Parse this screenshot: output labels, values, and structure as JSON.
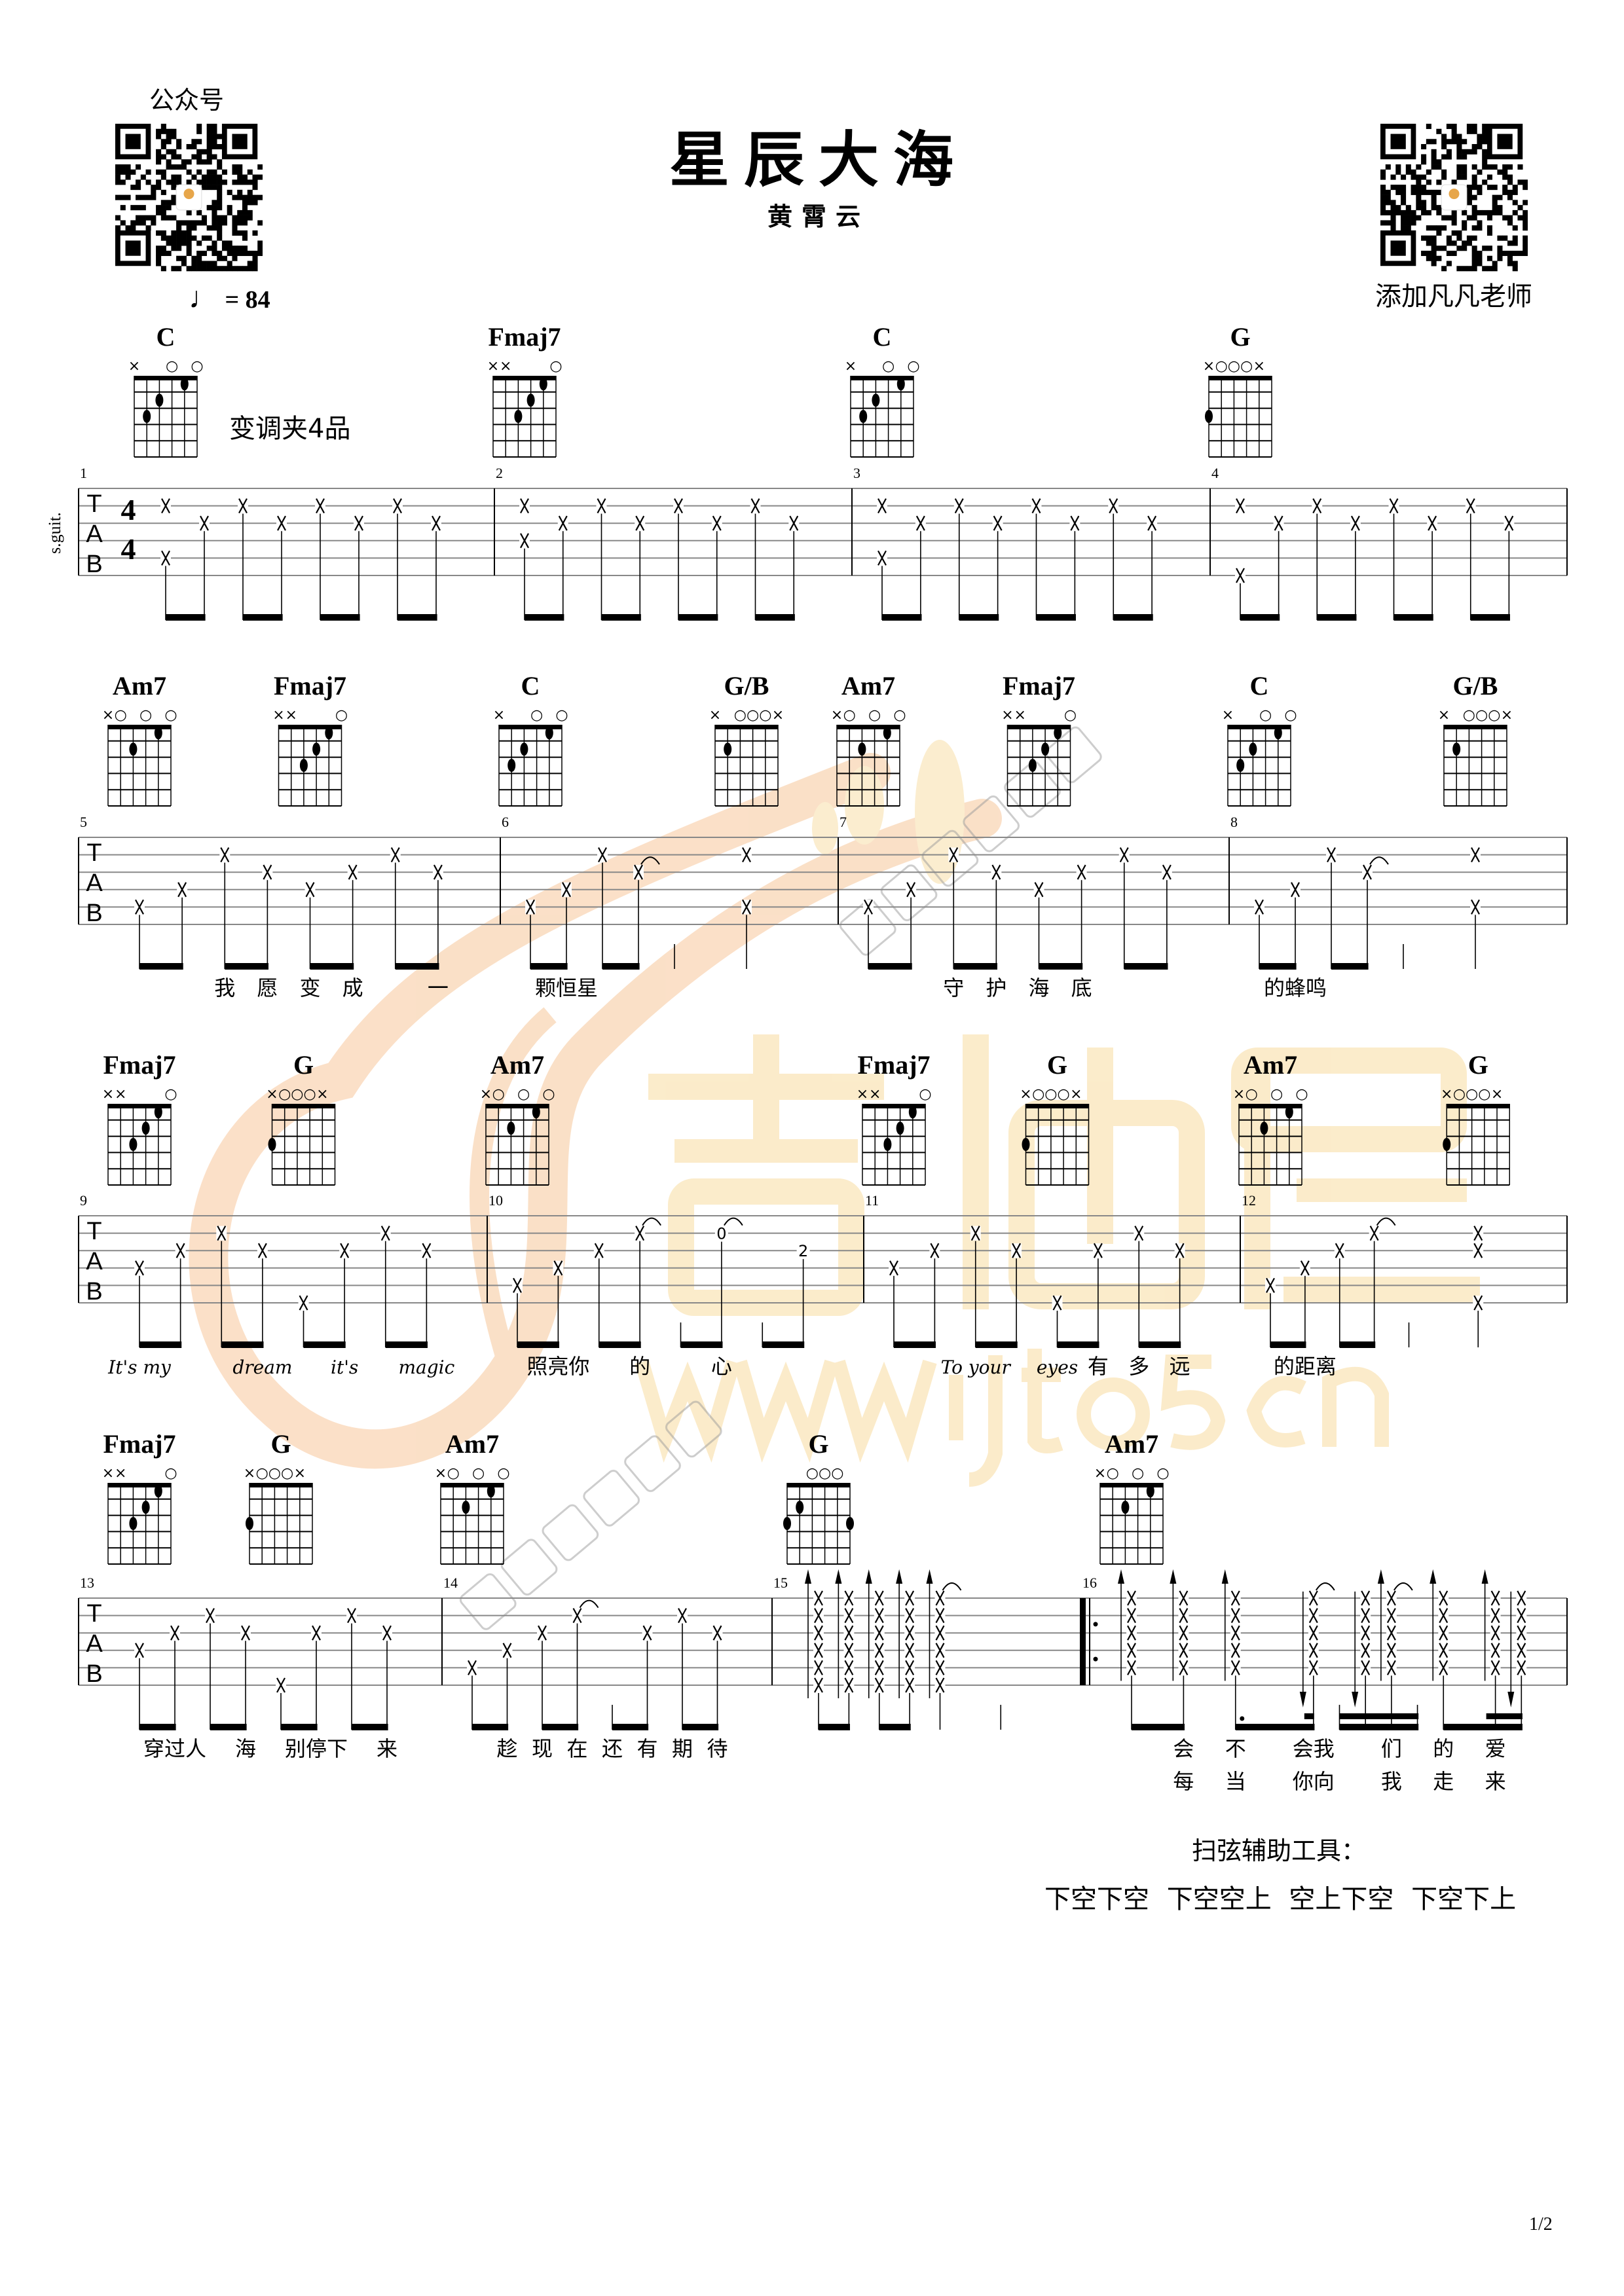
{
  "header": {
    "wechat_label": "公众号",
    "title": "星辰大海",
    "artist": "黄霄云",
    "add_teacher_label": "添加凡凡老师",
    "tempo_icon": "quarter-note-icon",
    "tempo": "= 84",
    "capo": "变调夹4品"
  },
  "instrument_label": "s.guit.",
  "clef": [
    "T",
    "A",
    "B"
  ],
  "time_signature": [
    "4",
    "4"
  ],
  "chord_shapes": {
    "C": {
      "markers": [
        "x",
        "",
        "",
        "o",
        "",
        "o"
      ],
      "dots": [
        [
          5,
          3
        ],
        [
          4,
          2
        ],
        [
          2,
          1
        ]
      ]
    },
    "Fmaj7": {
      "markers": [
        "x",
        "x",
        "",
        "",
        "",
        "o"
      ],
      "dots": [
        [
          4,
          3
        ],
        [
          3,
          2
        ],
        [
          2,
          1
        ]
      ]
    },
    "G": {
      "markers": [
        "x",
        "o",
        "o",
        "o",
        "x",
        ""
      ],
      "dots": [
        [
          6,
          3
        ]
      ]
    },
    "G3": {
      "markers": [
        "",
        "",
        "o",
        "o",
        "o",
        ""
      ],
      "dots": [
        [
          6,
          3
        ],
        [
          5,
          2
        ],
        [
          1,
          3
        ]
      ]
    },
    "Am7": {
      "markers": [
        "x",
        "o",
        "",
        "o",
        "",
        "o"
      ],
      "dots": [
        [
          4,
          2
        ],
        [
          2,
          1
        ]
      ]
    },
    "G/B": {
      "markers": [
        "x",
        "",
        "o",
        "o",
        "o",
        "x"
      ],
      "dots": [
        [
          5,
          2
        ]
      ]
    }
  },
  "systems": [
    {
      "measures": [
        {
          "num": "1",
          "events": [
            "25",
            "3",
            "2",
            "3",
            "2",
            "3",
            "2",
            "3"
          ],
          "chords": [
            {
              "i": 0,
              "name": "C"
            }
          ],
          "lyrics": []
        },
        {
          "num": "2",
          "events": [
            "24",
            "3",
            "2",
            "3",
            "2",
            "3",
            "2",
            "3"
          ],
          "chords": [
            {
              "i": 0,
              "name": "Fmaj7"
            }
          ],
          "lyrics": []
        },
        {
          "num": "3",
          "events": [
            "25",
            "3",
            "2",
            "3",
            "2",
            "3",
            "2",
            "3"
          ],
          "chords": [
            {
              "i": 0,
              "name": "C"
            }
          ],
          "lyrics": []
        },
        {
          "num": "4",
          "events": [
            "26",
            "3",
            "2",
            "3",
            "2",
            "3",
            "2",
            "3"
          ],
          "chords": [
            {
              "i": 0,
              "name": "G"
            }
          ],
          "lyrics": []
        }
      ]
    },
    {
      "measures": [
        {
          "num": "5",
          "events": [
            "5",
            "4",
            "2",
            "3",
            "4",
            "3",
            "2",
            "3"
          ],
          "chords": [
            {
              "i": 0,
              "name": "Am7"
            },
            {
              "i": 4,
              "name": "Fmaj7"
            }
          ],
          "lyrics": [
            {
              "i": 2,
              "t": "我"
            },
            {
              "i": 3,
              "t": "愿"
            },
            {
              "i": 4,
              "t": "变"
            },
            {
              "i": 5,
              "t": "成"
            },
            {
              "i": 7,
              "t": "一"
            }
          ]
        },
        {
          "num": "6",
          "events": [
            "5",
            "4",
            "2",
            "3~",
            "q-",
            "q25"
          ],
          "chords": [
            {
              "i": 0,
              "name": "C"
            },
            {
              "i": 5,
              "name": "G/B"
            }
          ],
          "lyrics": [
            {
              "i": 1,
              "t": "颗恒星"
            }
          ]
        },
        {
          "num": "7",
          "events": [
            "5",
            "4",
            "2",
            "3",
            "4",
            "3",
            "2",
            "3"
          ],
          "chords": [
            {
              "i": 0,
              "name": "Am7"
            },
            {
              "i": 4,
              "name": "Fmaj7"
            }
          ],
          "lyrics": [
            {
              "i": 2,
              "t": "守"
            },
            {
              "i": 3,
              "t": "护"
            },
            {
              "i": 4,
              "t": "海"
            },
            {
              "i": 5,
              "t": "底"
            }
          ]
        },
        {
          "num": "8",
          "events": [
            "5",
            "4",
            "2",
            "3~",
            "q-",
            "q25"
          ],
          "chords": [
            {
              "i": 0,
              "name": "C"
            },
            {
              "i": 5,
              "name": "G/B"
            }
          ],
          "lyrics": [
            {
              "i": 1,
              "t": "的蜂鸣"
            }
          ]
        }
      ]
    },
    {
      "measures": [
        {
          "num": "9",
          "events": [
            "4",
            "3",
            "2",
            "3",
            "6",
            "3",
            "2",
            "3"
          ],
          "chords": [
            {
              "i": 0,
              "name": "Fmaj7"
            },
            {
              "i": 4,
              "name": "G"
            }
          ],
          "lyrics": [
            {
              "i": 0,
              "t": "It's my"
            },
            {
              "i": 3,
              "t": "dream"
            },
            {
              "i": 5,
              "t": "it's"
            },
            {
              "i": 7,
              "t": "magic"
            }
          ]
        },
        {
          "num": "10",
          "events": [
            "5",
            "4",
            "3",
            "2~",
            "-",
            "2=0~",
            "-",
            "3=2"
          ],
          "chords": [
            {
              "i": 0,
              "name": "Am7"
            }
          ],
          "lyrics": [
            {
              "i": 1,
              "t": "照亮你"
            },
            {
              "i": 3,
              "t": "的"
            },
            {
              "i": 5,
              "t": "心"
            }
          ]
        },
        {
          "num": "11",
          "events": [
            "4",
            "3",
            "2",
            "3",
            "6",
            "3",
            "2",
            "3"
          ],
          "chords": [
            {
              "i": 0,
              "name": "Fmaj7"
            },
            {
              "i": 4,
              "name": "G"
            }
          ],
          "lyrics": [
            {
              "i": 2,
              "t": "To your"
            },
            {
              "i": 4,
              "t": "eyes"
            },
            {
              "i": 5,
              "t": "有"
            },
            {
              "i": 6,
              "t": "多"
            },
            {
              "i": 7,
              "t": "远"
            }
          ]
        },
        {
          "num": "12",
          "events": [
            "5",
            "4",
            "3",
            "2~",
            "q-",
            "q236"
          ],
          "chords": [
            {
              "i": 0,
              "name": "Am7"
            },
            {
              "i": 5,
              "name": "G"
            }
          ],
          "lyrics": [
            {
              "i": 1,
              "t": "的距离"
            }
          ]
        }
      ]
    },
    {
      "measures": [
        {
          "num": "13",
          "events": [
            "4",
            "3",
            "2",
            "3",
            "6",
            "3",
            "2",
            "3"
          ],
          "chords": [
            {
              "i": 0,
              "name": "Fmaj7"
            },
            {
              "i": 4,
              "name": "G"
            }
          ],
          "lyrics": [
            {
              "i": 1,
              "t": "穿过人"
            },
            {
              "i": 3,
              "t": "海"
            },
            {
              "i": 5,
              "t": "别停下"
            },
            {
              "i": 7,
              "t": "来"
            }
          ]
        },
        {
          "num": "14",
          "events": [
            "5",
            "4",
            "3",
            "2~",
            "-",
            "3",
            "2",
            "3"
          ],
          "chords": [
            {
              "i": 0,
              "name": "Am7"
            }
          ],
          "lyrics": [
            {
              "i": 1,
              "t": "趁"
            },
            {
              "i": 2,
              "t": "现"
            },
            {
              "i": 3,
              "t": "在"
            },
            {
              "i": 4,
              "t": "还"
            },
            {
              "i": 5,
              "t": "有"
            },
            {
              "i": 6,
              "t": "期"
            },
            {
              "i": 7,
              "t": "待"
            }
          ]
        },
        {
          "num": "15",
          "events": [
            "123456u",
            "123456u",
            "123456u",
            "123456u",
            "q123456u~",
            "q-"
          ],
          "chords": [
            {
              "i": 0,
              "name": "G",
              "shape": "G3"
            }
          ],
          "lyrics": []
        },
        {
          "num": "16",
          "repeat_start": true,
          "events": [
            "12345u",
            "12345u",
            "t12345u",
            "s12345d~",
            "s-",
            "s12345d",
            "s12345u~",
            "s-",
            "12345u",
            "s12345u",
            "s12345d"
          ],
          "chords": [
            {
              "i": 0,
              "name": "Am7"
            }
          ],
          "lyrics": [
            {
              "i": 1,
              "t": "会"
            },
            {
              "i": 2,
              "t": "不"
            },
            {
              "i": 3,
              "t": "会我"
            },
            {
              "i": 6,
              "t": "们"
            },
            {
              "i": 8,
              "t": "的"
            },
            {
              "i": 9,
              "t": "爱"
            }
          ],
          "lyrics2": [
            {
              "i": 1,
              "t": "每"
            },
            {
              "i": 2,
              "t": "当"
            },
            {
              "i": 3,
              "t": "你向"
            },
            {
              "i": 6,
              "t": "我"
            },
            {
              "i": 8,
              "t": "走"
            },
            {
              "i": 9,
              "t": "来"
            }
          ]
        }
      ]
    }
  ],
  "footer": {
    "strum_title": "扫弦辅助工具：",
    "strum_pattern": "下空下空 下空空上 空上下空 下空下上",
    "page": "1/2"
  },
  "watermark": {
    "brand": "吉他屋",
    "url": "www.jita5.cn",
    "studio": "凡凡吉他教室",
    "color": "#f9dfa8",
    "logo_color": "#f7c79b"
  }
}
